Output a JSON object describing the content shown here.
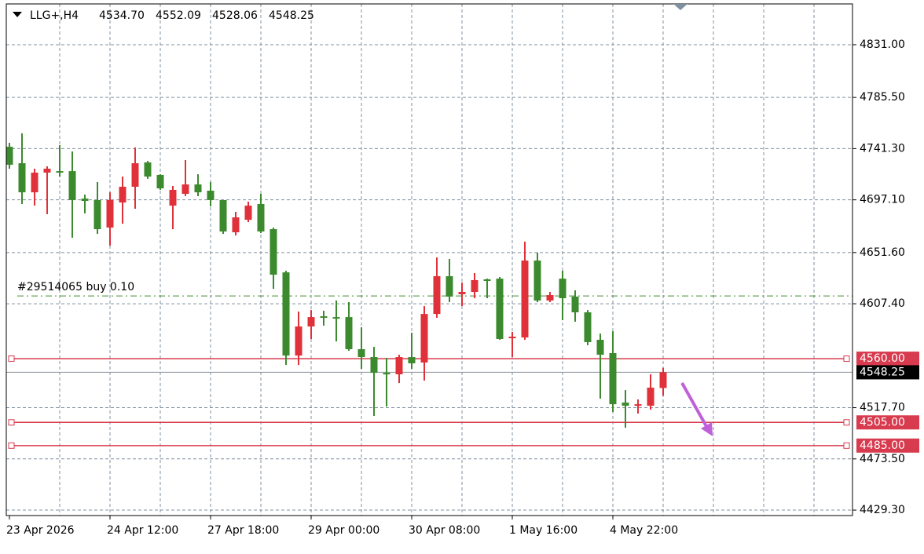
{
  "header": {
    "symbol": "LLG+,H4",
    "ohlc": [
      "4534.70",
      "4552.09",
      "4528.06",
      "4548.25"
    ]
  },
  "chart_data": {
    "type": "candlestick",
    "x": [
      "23 Apr 2026",
      null,
      null,
      null,
      null,
      null,
      null,
      null,
      "24 Apr 12:00",
      null,
      null,
      null,
      null,
      null,
      null,
      null,
      "27 Apr 18:00",
      null,
      null,
      null,
      null,
      null,
      null,
      null,
      "29 Apr 00:00",
      null,
      null,
      null,
      null,
      null,
      null,
      null,
      "30 Apr 08:00",
      null,
      null,
      null,
      null,
      null,
      null,
      null,
      "1 May 16:00",
      null,
      null,
      null,
      null,
      null,
      null,
      null,
      "4 May 22:00",
      null,
      null,
      null,
      null
    ],
    "open": [
      4742.9,
      4728.7,
      4703.6,
      4720.6,
      4721.9,
      4721.9,
      4698.2,
      4696.9,
      4673.2,
      4694.8,
      4708.4,
      4729.4,
      4718.6,
      4692.1,
      4702.3,
      4710.4,
      4705.0,
      4696.9,
      4669.1,
      4679.9,
      4693.5,
      4671.8,
      4634.5,
      4562.7,
      4587.8,
      4596.6,
      4595.9,
      4595.9,
      4568.2,
      4561.4,
      4547.8,
      4546.5,
      4561.4,
      4556.7,
      4598.6,
      4631.2,
      4615.6,
      4617.6,
      4628.5,
      4629.1,
      4577.7,
      4578.3,
      4644.7,
      4610.2,
      4629.1,
      4613.6,
      4600.0,
      4576.3,
      4564.8,
      4522.1,
      4519.4,
      4519.4,
      4534.7
    ],
    "high": [
      4746.3,
      4754.5,
      4724.0,
      4726.0,
      4744.3,
      4738.9,
      4701.6,
      4712.5,
      4703.6,
      4717.2,
      4742.3,
      4730.7,
      4719.2,
      4709.1,
      4731.4,
      4719.2,
      4712.5,
      4696.9,
      4686.7,
      4695.5,
      4702.3,
      4673.2,
      4635.9,
      4600.7,
      4602.0,
      4601.4,
      4610.2,
      4608.8,
      4587.1,
      4570.2,
      4560.7,
      4563.4,
      4582.4,
      4605.4,
      4647.4,
      4646.1,
      4625.7,
      4633.9,
      4629.1,
      4630.5,
      4583.1,
      4661.0,
      4651.5,
      4617.6,
      4635.9,
      4619.0,
      4602.0,
      4581.7,
      4583.7,
      4532.9,
      4524.8,
      4546.5,
      4552.09
    ],
    "low": [
      4724.0,
      4693.5,
      4692.1,
      4684.7,
      4717.2,
      4664.4,
      4685.4,
      4667.7,
      4657.6,
      4676.5,
      4689.4,
      4715.2,
      4705.7,
      4671.8,
      4700.3,
      4700.3,
      4691.5,
      4667.7,
      4666.4,
      4677.9,
      4668.4,
      4620.3,
      4554.6,
      4554.6,
      4577.0,
      4588.5,
      4574.9,
      4566.8,
      4551.2,
      4510.6,
      4518.7,
      4539.0,
      4551.2,
      4541.1,
      4595.3,
      4608.8,
      4605.4,
      4612.2,
      4612.2,
      4576.3,
      4561.4,
      4576.3,
      4608.8,
      4608.8,
      4593.2,
      4591.9,
      4571.6,
      4525.5,
      4514.0,
      4500.4,
      4512.6,
      4516.0,
      4528.06
    ],
    "close": [
      4727.4,
      4703.6,
      4720.6,
      4724.0,
      4720.6,
      4696.9,
      4696.2,
      4671.8,
      4696.9,
      4708.4,
      4728.7,
      4717.2,
      4707.0,
      4705.7,
      4710.4,
      4703.6,
      4696.9,
      4669.8,
      4682.0,
      4692.1,
      4669.8,
      4632.5,
      4562.7,
      4587.8,
      4595.9,
      4595.3,
      4595.3,
      4568.2,
      4561.4,
      4547.8,
      4546.5,
      4561.4,
      4556.0,
      4598.6,
      4631.2,
      4613.6,
      4617.6,
      4627.8,
      4627.1,
      4577.0,
      4579.0,
      4644.7,
      4610.2,
      4614.9,
      4612.2,
      4600.0,
      4574.3,
      4563.4,
      4520.7,
      4519.4,
      4520.7,
      4535.0,
      4548.25
    ],
    "up_color": "#e0313a",
    "down_color": "#3c8a2e",
    "ylim": [
      4424.6,
      4866.2
    ],
    "yticks": [
      {
        "value": 4831,
        "label": "4831.00"
      },
      {
        "value": 4785.5,
        "label": "4785.50"
      },
      {
        "value": 4741.3,
        "label": "4741.30"
      },
      {
        "value": 4697.1,
        "label": "4697.10"
      },
      {
        "value": 4651.6,
        "label": "4651.60"
      },
      {
        "value": 4607.4,
        "label": "4607.40"
      },
      {
        "value": 4517.7,
        "label": "4517.70"
      },
      {
        "value": 4473.5,
        "label": "4473.50"
      },
      {
        "value": 4429.3,
        "label": "4429.30"
      }
    ],
    "grid": true,
    "levels": [
      {
        "value": 4560,
        "label": "4560.00"
      },
      {
        "value": 4505,
        "label": "4505.00"
      },
      {
        "value": 4485,
        "label": "4485.00"
      }
    ],
    "level_color": "#d83a4e",
    "bid": {
      "value": 4548.25,
      "label": "4548.25"
    },
    "order": {
      "label": "#29514065 buy 0.10",
      "value": 4614.2,
      "color": "#3c8a2e"
    }
  }
}
